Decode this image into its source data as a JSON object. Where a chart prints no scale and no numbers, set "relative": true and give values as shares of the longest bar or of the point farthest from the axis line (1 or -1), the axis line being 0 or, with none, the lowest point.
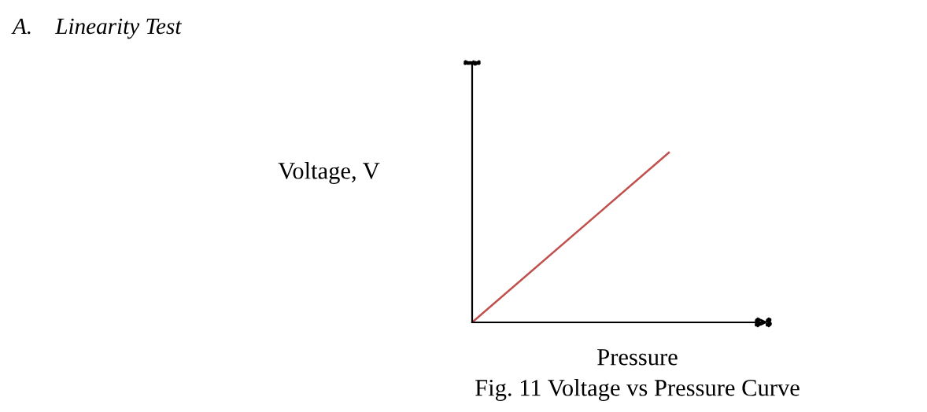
{
  "chart_data": {
    "type": "line",
    "title": "A.    Linearity Test",
    "xlabel": "Pressure",
    "ylabel": "Voltage, V",
    "annotations": [
      "Fig. 11 Voltage vs Pressure Curve"
    ],
    "categories": [
      null,
      null
    ],
    "series": [
      {
        "color": "#c0504d",
        "values": [
          0,
          1
        ]
      }
    ],
    "relative": true,
    "tick_labels": false
  }
}
